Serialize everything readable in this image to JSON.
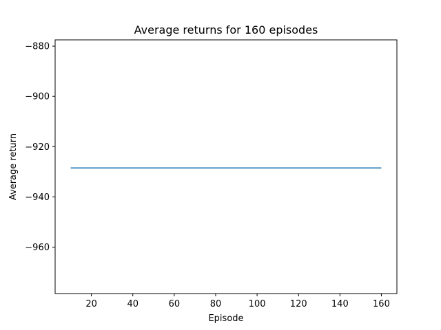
{
  "chart_data": {
    "type": "line",
    "title": "Average returns for 160 episodes",
    "xlabel": "Episode",
    "ylabel": "Average return",
    "xlim": [
      2.5,
      167.5
    ],
    "ylim": [
      -978.5,
      -877.5
    ],
    "x_ticks": [
      20,
      40,
      60,
      80,
      100,
      120,
      140,
      160
    ],
    "y_ticks": [
      -960,
      -940,
      -920,
      -900,
      -880
    ],
    "grid": false,
    "series": [
      {
        "color": "#1f77b4",
        "x": [
          10,
          20,
          30,
          40,
          50,
          60,
          70,
          80,
          90,
          100,
          110,
          120,
          130,
          140,
          150,
          160
        ],
        "y": [
          -928.5,
          -928.5,
          -928.5,
          -928.5,
          -928.5,
          -928.5,
          -928.5,
          -928.5,
          -928.5,
          -928.5,
          -928.5,
          -928.5,
          -928.5,
          -928.5,
          -928.5,
          -928.5
        ]
      }
    ]
  }
}
